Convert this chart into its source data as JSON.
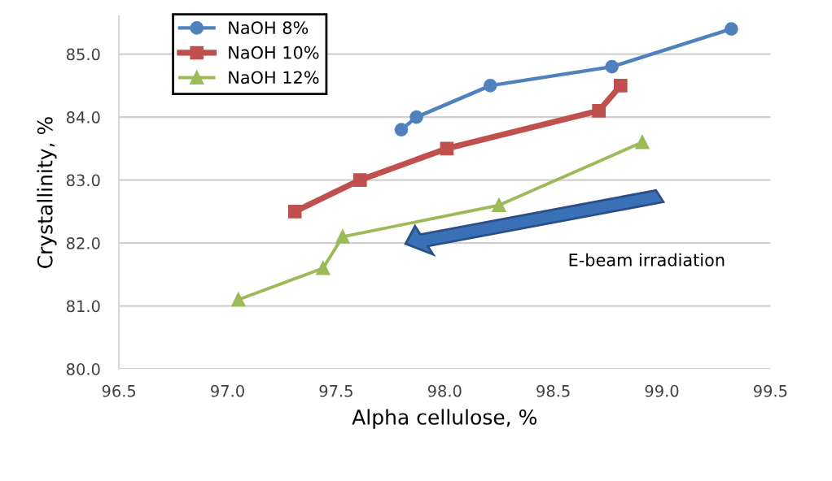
{
  "chart_data": {
    "type": "line",
    "xlabel": "Alpha cellulose, %",
    "ylabel": "Crystallinity, %",
    "xlim": [
      96.5,
      99.5
    ],
    "xticks": [
      {
        "value": 96.5,
        "label": "96.5"
      },
      {
        "value": 97.0,
        "label": "97.0"
      },
      {
        "value": 97.5,
        "label": "97.5"
      },
      {
        "value": 98.0,
        "label": "98.0"
      },
      {
        "value": 98.5,
        "label": "98.5"
      },
      {
        "value": 99.0,
        "label": "99.0"
      },
      {
        "value": 99.5,
        "label": "99.5"
      }
    ],
    "ylim": [
      80,
      85.6
    ],
    "yticks": [
      {
        "value": 80,
        "label": "80.0"
      },
      {
        "value": 81,
        "label": "81.0"
      },
      {
        "value": 82,
        "label": "82.0"
      },
      {
        "value": 83,
        "label": "83.0"
      },
      {
        "value": 84,
        "label": "84.0"
      },
      {
        "value": 85,
        "label": "85.0"
      }
    ],
    "grid": "y",
    "legend": "top left",
    "series": [
      {
        "name": "NaOH 8%",
        "color": "#4f81bd",
        "marker": "circle",
        "x": [
          97.8,
          97.87,
          98.21,
          98.77,
          99.32
        ],
        "values": [
          83.8,
          84.0,
          84.5,
          84.8,
          85.4
        ]
      },
      {
        "name": "NaOH 10%",
        "color": "#c0504d",
        "marker": "square",
        "x": [
          97.31,
          97.61,
          98.01,
          98.71,
          98.81
        ],
        "values": [
          82.5,
          83.0,
          83.5,
          84.1,
          84.5
        ]
      },
      {
        "name": "NaOH 12%",
        "color": "#9bbb59",
        "marker": "triangle",
        "x": [
          97.05,
          97.44,
          97.53,
          98.25,
          98.91
        ],
        "values": [
          81.1,
          81.6,
          82.1,
          82.6,
          83.6
        ]
      }
    ],
    "annotations": [
      "E-beam irradiation"
    ]
  }
}
